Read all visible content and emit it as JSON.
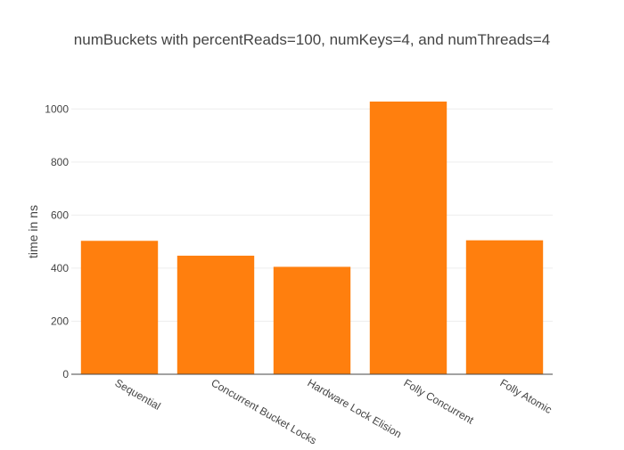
{
  "chart_data": {
    "type": "bar",
    "title": "numBuckets with percentReads=100, numKeys=4, and numThreads=4",
    "xlabel": "",
    "ylabel": "time in ns",
    "categories": [
      "Sequential",
      "Concurrent Bucket Locks",
      "Hardware Lock Elision",
      "Folly Concurrent",
      "Folly Atomic"
    ],
    "values": [
      503,
      447,
      405,
      1028,
      505
    ],
    "ylim": [
      0,
      1085
    ],
    "yticks": [
      0,
      200,
      400,
      600,
      800,
      1000
    ],
    "grid": true,
    "legend": "none",
    "bar_color": "#ff7f0e"
  }
}
